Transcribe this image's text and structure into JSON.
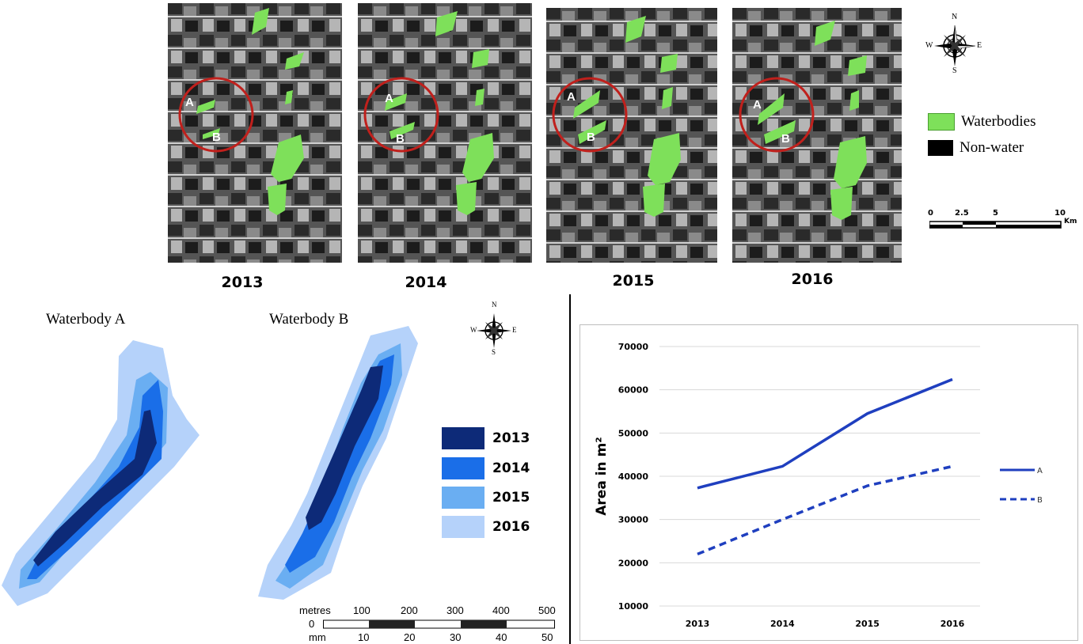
{
  "years": [
    "2013",
    "2014",
    "2015",
    "2016"
  ],
  "map_legend": {
    "waterbodies": "Waterbodies",
    "non_water": "Non-water",
    "water_color": "#7ee05a",
    "non_water_color": "#000000"
  },
  "compass": {
    "n": "N",
    "s": "S",
    "e": "E",
    "w": "W"
  },
  "scale_km": {
    "ticks": [
      "0",
      "2.5",
      "5",
      "10"
    ],
    "unit": "Km"
  },
  "circle_labels": {
    "a": "A",
    "b": "B"
  },
  "waterbody_titles": {
    "a": "Waterbody A",
    "b": "Waterbody B"
  },
  "extent_legend": [
    {
      "label": "2013",
      "color": "#0d2a78"
    },
    {
      "label": "2014",
      "color": "#1a6ee8"
    },
    {
      "label": "2015",
      "color": "#6aaef2"
    },
    {
      "label": "2016",
      "color": "#b5d2fa"
    }
  ],
  "scale_m": {
    "metres_label": "metres",
    "mm_label": "mm",
    "zero": "0",
    "metres_ticks": [
      "100",
      "200",
      "300",
      "400",
      "500"
    ],
    "mm_ticks": [
      "10",
      "20",
      "30",
      "40",
      "50"
    ]
  },
  "chart_data": {
    "type": "line",
    "x": [
      "2013",
      "2014",
      "2015",
      "2016"
    ],
    "series": [
      {
        "name": "A",
        "values": [
          37300,
          42300,
          54500,
          62400
        ],
        "style": "solid"
      },
      {
        "name": "B",
        "values": [
          22000,
          30000,
          37800,
          42300
        ],
        "style": "dashed"
      }
    ],
    "ylabel": "Area in m²",
    "ylim": [
      10000,
      70000
    ],
    "yticks": [
      "10000",
      "20000",
      "30000",
      "40000",
      "50000",
      "60000",
      "70000"
    ],
    "grid": true,
    "legend": "right",
    "line_color": "#1f3fbf"
  }
}
